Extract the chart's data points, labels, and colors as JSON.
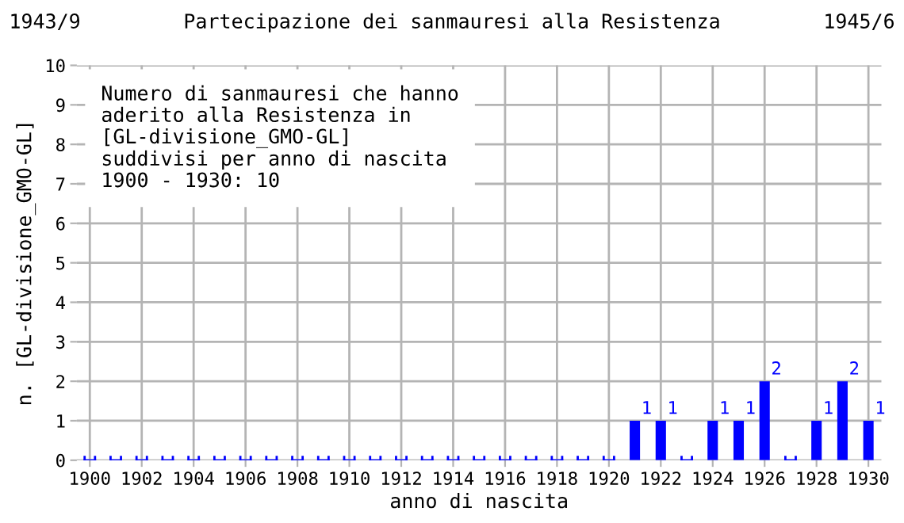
{
  "chart_data": {
    "type": "bar",
    "title": "Partecipazione dei sanmauresi alla Resistenza",
    "annotations": [
      "1943/9",
      "1945/6",
      "Numero di sanmauresi che hanno\naderito alla Resistenza in\n[GL-divisione_GMO-GL]\nsuddivisi per anno di nascita\n1900 - 1930: 10"
    ],
    "xlabel": "anno di nascita",
    "ylabel": "n. [GL-divisione_GMO-GL]",
    "categories": [
      "1900",
      null,
      "1902",
      null,
      "1904",
      null,
      "1906",
      null,
      "1908",
      null,
      "1910",
      null,
      "1912",
      null,
      "1914",
      null,
      "1916",
      null,
      "1918",
      null,
      "1920",
      null,
      "1922",
      null,
      "1924",
      null,
      "1926",
      null,
      "1928",
      null,
      "1930"
    ],
    "values": [
      0,
      0,
      0,
      0,
      0,
      0,
      0,
      0,
      0,
      0,
      0,
      0,
      0,
      0,
      0,
      0,
      0,
      0,
      0,
      0,
      0,
      1,
      1,
      0,
      1,
      1,
      2,
      0,
      1,
      2,
      1
    ],
    "value_labels": [
      null,
      null,
      null,
      null,
      null,
      null,
      null,
      null,
      null,
      null,
      null,
      null,
      null,
      null,
      null,
      null,
      null,
      null,
      null,
      null,
      null,
      "1",
      "1",
      null,
      "1",
      "1",
      "2",
      null,
      "1",
      "2",
      "1"
    ],
    "color": "#0000ff",
    "ylim": [
      0,
      10
    ],
    "yticks": [
      0,
      1,
      2,
      3,
      4,
      5,
      6,
      7,
      8,
      9,
      10
    ],
    "grid": true
  }
}
